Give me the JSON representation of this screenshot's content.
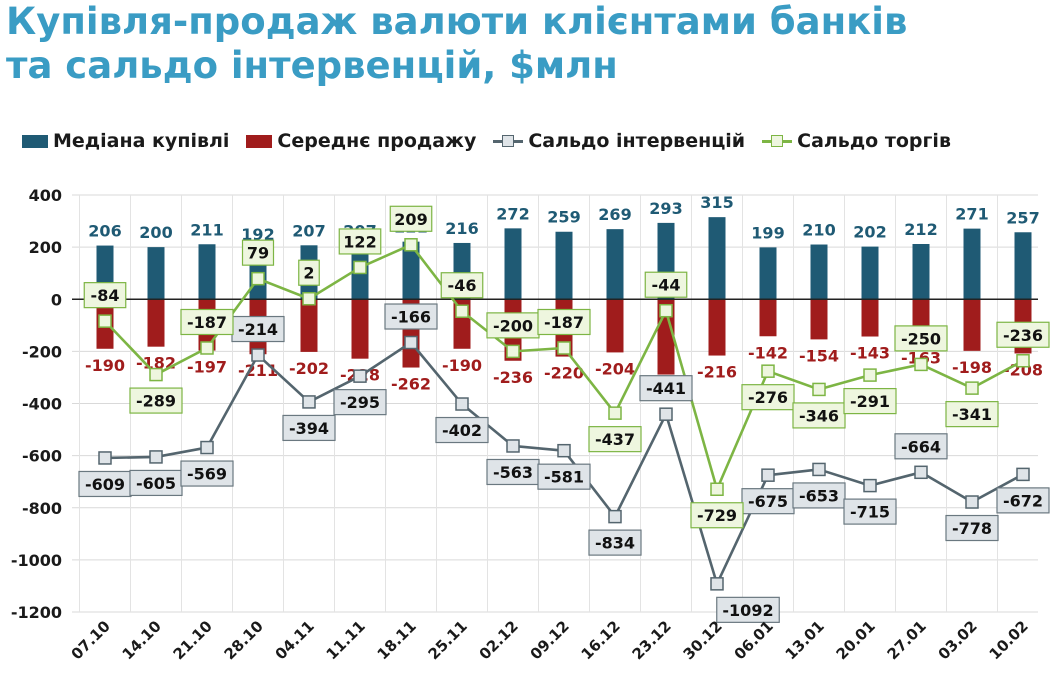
{
  "title": {
    "line1": "Купівля-продаж валюти клієнтами банків",
    "line2": "та сальдо інтервенцій, $млн"
  },
  "legend": {
    "buy": "Медіана купівлі",
    "sell": "Середнє продажу",
    "interventions": "Сальдо інтервенцій",
    "trade": "Сальдо торгів"
  },
  "colors": {
    "title": "#3a9cc4",
    "buy": "#1f5a74",
    "sell": "#a01c1c",
    "interventions": "#54656e",
    "trade": "#7db544",
    "interventions_label_bg": "#dfe4e8",
    "trade_label_bg": "#eef6df"
  },
  "chart_data": {
    "type": "bar+line",
    "categories": [
      "07.10",
      "14.10",
      "21.10",
      "28.10",
      "04.11",
      "11.11",
      "18.11",
      "25.11",
      "02.12",
      "09.12",
      "16.12",
      "23.12",
      "30.12",
      "06.01",
      "13.01",
      "20.01",
      "27.01",
      "03.02",
      "10.02"
    ],
    "ylim": [
      -1200,
      400
    ],
    "yticks": [
      400,
      200,
      0,
      -200,
      -400,
      -600,
      -800,
      -1000,
      -1200
    ],
    "grid": true,
    "legend_position": "top",
    "series": [
      {
        "name": "Медіана купівлі",
        "kind": "bar",
        "values": [
          206,
          200,
          211,
          192,
          207,
          207,
          221,
          216,
          272,
          259,
          269,
          293,
          315,
          199,
          210,
          202,
          212,
          271,
          257
        ]
      },
      {
        "name": "Середнє продажу",
        "kind": "bar",
        "values": [
          -190,
          -182,
          -197,
          -211,
          -202,
          -228,
          -262,
          -190,
          -236,
          -220,
          -204,
          -289,
          -216,
          -142,
          -154,
          -143,
          -163,
          -198,
          -208
        ]
      },
      {
        "name": "Сальдо інтервенцій",
        "kind": "line",
        "values": [
          -609,
          -605,
          -569,
          -214,
          -394,
          -295,
          -166,
          -402,
          -563,
          -581,
          -834,
          -441,
          -1092,
          -675,
          -653,
          -715,
          -664,
          -778,
          -672
        ]
      },
      {
        "name": "Сальдо торгів",
        "kind": "line",
        "values": [
          -84,
          -289,
          -187,
          79,
          2,
          122,
          209,
          -46,
          -200,
          -187,
          -437,
          -44,
          -729,
          -276,
          -346,
          -291,
          -250,
          -341,
          -236
        ]
      }
    ]
  }
}
